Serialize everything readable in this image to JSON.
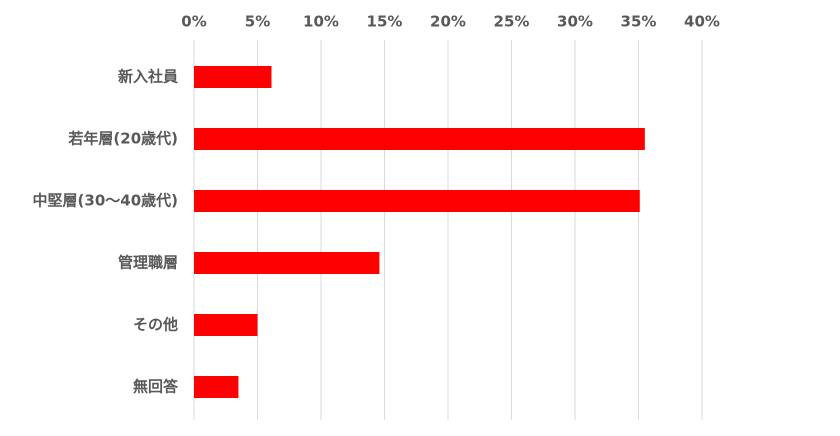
{
  "chart_data": {
    "type": "hbar",
    "categories": [
      "新入社員",
      "若年層(20歳代)",
      "中堅層(30～40歳代)",
      "管理職層",
      "その他",
      "無回答"
    ],
    "values": [
      6.1,
      35.5,
      35.1,
      14.6,
      5.0,
      3.5
    ],
    "color": "#ff0000",
    "xlim": [
      0,
      40
    ],
    "xticks": [
      {
        "value": 0,
        "label": "0%"
      },
      {
        "value": 5,
        "label": "5%"
      },
      {
        "value": 10,
        "label": "10%"
      },
      {
        "value": 15,
        "label": "15%"
      },
      {
        "value": 20,
        "label": "20%"
      },
      {
        "value": 25,
        "label": "25%"
      },
      {
        "value": 30,
        "label": "30%"
      },
      {
        "value": 35,
        "label": "35%"
      },
      {
        "value": 40,
        "label": "40%"
      }
    ],
    "grid": true
  }
}
